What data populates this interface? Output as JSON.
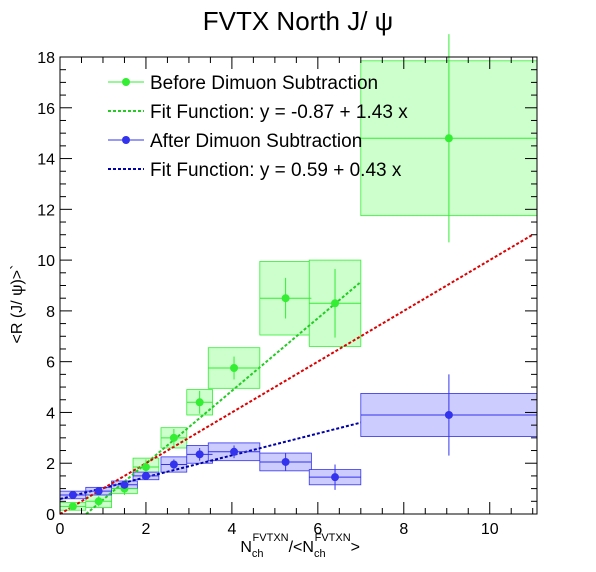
{
  "chart_data": {
    "type": "scatter",
    "title": "FVTX North J/ ψ",
    "xlabel": {
      "base": "N",
      "sub": "ch",
      "sup": "FVTXN",
      "mid": "/<",
      "base2": "N",
      "sub2": "ch",
      "sup2": "FVTXN",
      "end": ">"
    },
    "ylabel": "<R (J/ ψ)>`",
    "xlim": [
      0,
      11.1
    ],
    "ylim": [
      0,
      18
    ],
    "x_ticks": [
      0,
      2,
      4,
      6,
      8,
      10
    ],
    "y_ticks": [
      0,
      2,
      4,
      6,
      8,
      10,
      12,
      14,
      16,
      18
    ],
    "grid": false,
    "legend_position": "top-left",
    "series": [
      {
        "name": "Before Dimuon Subtraction",
        "color": "#33ee33",
        "box_fill": "#ccffcc",
        "x": [
          0.3,
          0.9,
          1.5,
          2.0,
          2.65,
          3.25,
          4.05,
          5.25,
          6.4,
          9.05
        ],
        "y": [
          0.3,
          0.5,
          1.0,
          1.85,
          3.0,
          4.4,
          5.75,
          8.5,
          8.3,
          14.8
        ],
        "x_err": [
          0.3,
          0.3,
          0.3,
          0.3,
          0.3,
          0.3,
          0.6,
          0.6,
          0.6,
          2.05
        ],
        "y_err_stat": [
          0.15,
          0.2,
          0.25,
          0.3,
          0.35,
          0.45,
          0.45,
          0.8,
          1.35,
          4.1
        ],
        "y_err_sys": [
          0.15,
          0.25,
          0.2,
          0.35,
          0.4,
          0.5,
          0.8,
          1.45,
          1.7,
          3.05
        ]
      },
      {
        "name": "After Dimuon Subtraction",
        "color": "#3333ee",
        "box_fill": "#ccccff",
        "x": [
          0.3,
          0.9,
          1.5,
          2.0,
          2.65,
          3.25,
          4.05,
          5.25,
          6.4,
          9.05
        ],
        "y": [
          0.75,
          0.9,
          1.15,
          1.5,
          1.95,
          2.35,
          2.45,
          2.05,
          1.45,
          3.9
        ],
        "x_err": [
          0.3,
          0.3,
          0.3,
          0.3,
          0.3,
          0.3,
          0.6,
          0.6,
          0.6,
          2.05
        ],
        "y_err_stat": [
          0.1,
          0.1,
          0.15,
          0.15,
          0.2,
          0.25,
          0.25,
          0.35,
          0.5,
          1.6
        ],
        "y_err_sys": [
          0.15,
          0.15,
          0.15,
          0.15,
          0.3,
          0.35,
          0.35,
          0.35,
          0.3,
          0.85
        ]
      }
    ],
    "fits": [
      {
        "name": "Fit Function: y = -0.87 + 1.43 x",
        "color": "#22cc22",
        "intercept": -0.87,
        "slope": 1.43,
        "x_range": [
          0,
          7.0
        ]
      },
      {
        "name": "Fit Function: y = 0.59 + 0.43 x",
        "color": "#0000aa",
        "intercept": 0.59,
        "slope": 0.43,
        "x_range": [
          0,
          7.0
        ]
      },
      {
        "name": "",
        "color": "#dd0000",
        "intercept": 0.0,
        "slope": 1.0,
        "x_range": [
          0,
          11.0
        ]
      }
    ]
  }
}
